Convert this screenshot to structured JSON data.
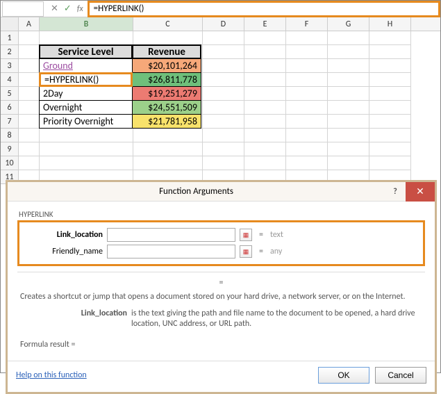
{
  "formula_bar": {
    "name_box": "",
    "cancel_glyph": "✕",
    "enter_glyph": "✓",
    "fx_label": "fx",
    "formula": "=HYPERLINK()"
  },
  "columns": [
    "A",
    "B",
    "C",
    "D",
    "E",
    "F",
    "G",
    "H"
  ],
  "active_column": "B",
  "row_numbers": [
    1,
    2,
    3,
    4,
    5,
    6,
    7,
    8,
    9,
    10,
    11
  ],
  "table": {
    "header": {
      "service": "Service Level",
      "revenue": "Revenue"
    },
    "rows": [
      {
        "service": "Ground",
        "revenue": "$20,101,264",
        "color": "#f6a879",
        "link": true
      },
      {
        "service": "=HYPERLINK()",
        "revenue": "$26,811,778",
        "color": "#6fbf7b",
        "editing": true
      },
      {
        "service": "2Day",
        "revenue": "$19,251,279",
        "color": "#ec7b72"
      },
      {
        "service": "Overnight",
        "revenue": "$24,551,509",
        "color": "#9cd08a"
      },
      {
        "service": "Priority Overnight",
        "revenue": "$21,781,958",
        "color": "#f8e26b"
      }
    ]
  },
  "grid": {
    "col_widths": {
      "A": 30,
      "B": 135,
      "C": 100,
      "D": 60,
      "E": 60,
      "F": 60,
      "G": 60,
      "H": 60
    }
  },
  "dialog": {
    "title": "Function Arguments",
    "function_name": "HYPERLINK",
    "args": [
      {
        "label": "Link_location",
        "bold": true,
        "value": "",
        "hint": "text"
      },
      {
        "label": "Friendly_name",
        "bold": false,
        "value": "",
        "hint": "any"
      }
    ],
    "center_eq": "=",
    "description": "Creates a shortcut or jump that opens a document stored on your hard drive, a network server, or on the Internet.",
    "arg_desc": {
      "label": "Link_location",
      "text": "is the text giving the path and file name to the document to be opened, a hard drive location, UNC address, or URL path."
    },
    "result_label": "Formula result =",
    "help_link": "Help on this function",
    "ok": "OK",
    "cancel": "Cancel",
    "close_glyph": "✕",
    "help_glyph": "?"
  }
}
